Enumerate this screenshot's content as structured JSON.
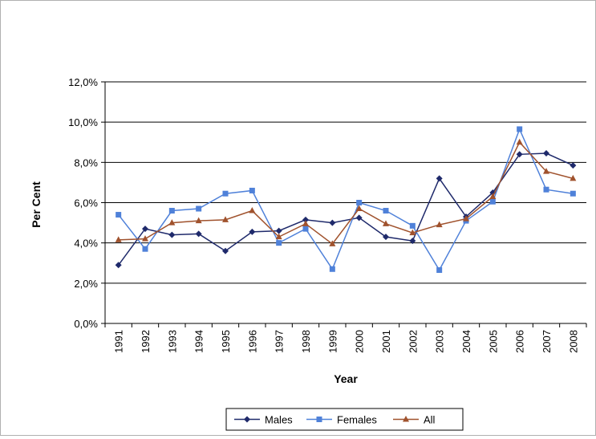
{
  "chart_data": {
    "type": "line",
    "title": "",
    "xlabel": "Year",
    "ylabel": "Per Cent",
    "ylim": [
      0,
      12
    ],
    "y_ticks": [
      "0,0%",
      "2,0%",
      "4,0%",
      "6,0%",
      "8,0%",
      "10,0%",
      "12,0%"
    ],
    "grid": "horizontal",
    "legend_position": "bottom",
    "categories": [
      "1991",
      "1992",
      "1993",
      "1994",
      "1995",
      "1996",
      "1997",
      "1998",
      "1999",
      "2000",
      "2001",
      "2002",
      "2003",
      "2004",
      "2005",
      "2006",
      "2007",
      "2008"
    ],
    "series": [
      {
        "name": "Males",
        "color": "#1f2a6b",
        "marker": "diamond",
        "values": [
          2.9,
          4.7,
          4.4,
          4.45,
          3.6,
          4.55,
          4.6,
          5.15,
          5.0,
          5.25,
          4.3,
          4.1,
          7.2,
          5.3,
          6.5,
          8.4,
          8.45,
          7.85
        ]
      },
      {
        "name": "Females",
        "color": "#4f81d9",
        "marker": "square",
        "values": [
          5.4,
          3.7,
          5.6,
          5.7,
          6.45,
          6.6,
          4.0,
          4.7,
          2.7,
          6.0,
          5.6,
          4.85,
          2.65,
          5.1,
          6.05,
          9.65,
          6.65,
          6.45
        ]
      },
      {
        "name": "All",
        "color": "#a0522d",
        "marker": "triangle",
        "values": [
          4.15,
          4.2,
          5.0,
          5.1,
          5.15,
          5.6,
          4.3,
          4.95,
          3.95,
          5.7,
          4.95,
          4.5,
          4.9,
          5.2,
          6.3,
          9.0,
          7.55,
          7.2
        ]
      }
    ]
  }
}
